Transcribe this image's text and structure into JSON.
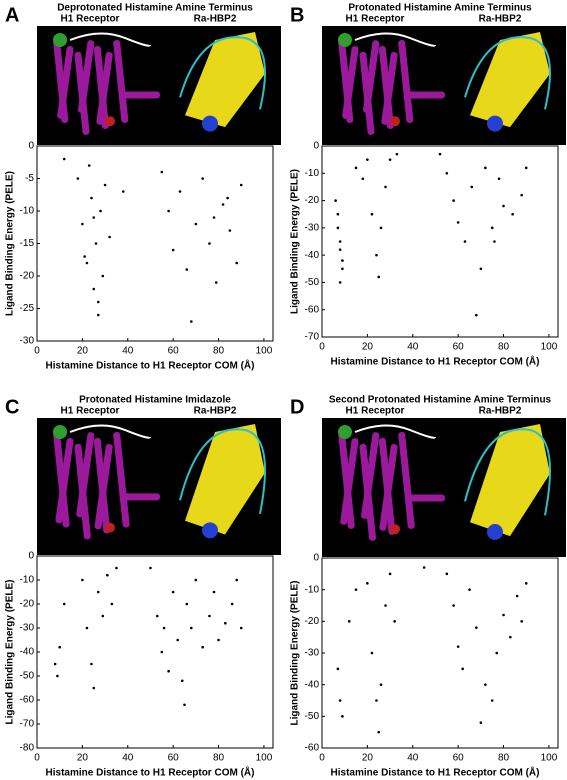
{
  "chart_data": [
    {
      "type": "scatter",
      "label": "A",
      "title": "Deprotonated Histamine Amine Terminus",
      "image_labels": [
        "H1 Receptor",
        "Ra-HBP2"
      ],
      "x_label": "Histamine Distance to H1 Receptor COM (Å)",
      "y_label": "Ligand Binding Energy (PELE)",
      "xlim": [
        0,
        104
      ],
      "ylim": [
        0,
        -30
      ],
      "xticks": [
        0,
        20,
        40,
        60,
        80,
        100
      ],
      "yticks": [
        0,
        -5,
        -10,
        -15,
        -20,
        -25,
        -30
      ],
      "color": "#000000",
      "x": [
        18,
        20,
        22,
        24,
        25,
        26,
        27,
        28,
        29,
        30,
        32,
        23,
        25,
        27,
        21,
        55,
        58,
        60,
        63,
        66,
        70,
        73,
        76,
        79,
        82,
        85,
        88,
        90,
        68,
        78,
        84,
        12,
        38
      ],
      "y": [
        -5,
        -12,
        -18,
        -8,
        -22,
        -15,
        -26,
        -10,
        -20,
        -6,
        -14,
        -3,
        -11,
        -24,
        -17,
        -4,
        -10,
        -16,
        -7,
        -19,
        -12,
        -5,
        -15,
        -21,
        -9,
        -13,
        -18,
        -6,
        -27,
        -11,
        -8,
        -2,
        -7
      ]
    },
    {
      "type": "scatter",
      "label": "B",
      "title": "Protonated Histamine Amine Terminus",
      "image_labels": [
        "H1 Receptor",
        "Ra-HBP2"
      ],
      "x_label": "Histamine Distance to H1 Receptor COM (Å)",
      "y_label": "Ligand Binding Energy (PELE)",
      "xlim": [
        0,
        104
      ],
      "ylim": [
        0,
        -70
      ],
      "xticks": [
        0,
        20,
        40,
        60,
        80,
        100
      ],
      "yticks": [
        0,
        -10,
        -20,
        -30,
        -40,
        -50,
        -60,
        -70
      ],
      "color": "#000000",
      "x": [
        6,
        7,
        8,
        9,
        8,
        7,
        9,
        8,
        15,
        20,
        22,
        24,
        25,
        26,
        28,
        30,
        18,
        52,
        55,
        58,
        60,
        63,
        66,
        70,
        72,
        75,
        76,
        78,
        80,
        84,
        88,
        90,
        68,
        33
      ],
      "y": [
        -20,
        -30,
        -38,
        -45,
        -50,
        -25,
        -42,
        -35,
        -8,
        -5,
        -25,
        -40,
        -48,
        -30,
        -15,
        -5,
        -12,
        -3,
        -10,
        -20,
        -28,
        -35,
        -15,
        -45,
        -8,
        -30,
        -35,
        -12,
        -22,
        -25,
        -18,
        -8,
        -62,
        -3
      ]
    },
    {
      "type": "scatter",
      "label": "C",
      "title": "Protonated Histamine Imidazole",
      "image_labels": [
        "H1 Receptor",
        "Ra-HBP2"
      ],
      "x_label": "Histamine Distance to H1 Receptor COM (Å)",
      "y_label": "Ligand Binding Energy (PELE)",
      "xlim": [
        0,
        104
      ],
      "ylim": [
        0,
        -80
      ],
      "xticks": [
        0,
        20,
        40,
        60,
        80,
        100
      ],
      "yticks": [
        0,
        -10,
        -20,
        -30,
        -40,
        -50,
        -60,
        -70,
        -80
      ],
      "color": "#000000",
      "x": [
        8,
        9,
        10,
        12,
        22,
        24,
        25,
        27,
        29,
        31,
        33,
        35,
        20,
        50,
        53,
        55,
        58,
        60,
        62,
        64,
        66,
        68,
        70,
        73,
        76,
        78,
        80,
        83,
        86,
        88,
        90,
        65,
        56
      ],
      "y": [
        -45,
        -50,
        -38,
        -20,
        -30,
        -45,
        -55,
        -15,
        -25,
        -8,
        -20,
        -5,
        -10,
        -5,
        -25,
        -40,
        -48,
        -15,
        -35,
        -52,
        -20,
        -30,
        -10,
        -38,
        -25,
        -15,
        -35,
        -28,
        -20,
        -10,
        -30,
        -62,
        -30
      ]
    },
    {
      "type": "scatter",
      "label": "D",
      "title": "Second Protonated Histamine Amine Terminus",
      "image_labels": [
        "H1 Receptor",
        "Ra-HBP2"
      ],
      "x_label": "Histamine Distance to H1 Receptor COM (Å)",
      "y_label": "Ligand Binding Energy (PELE)",
      "xlim": [
        0,
        104
      ],
      "ylim": [
        0,
        -60
      ],
      "xticks": [
        0,
        20,
        40,
        60,
        80,
        100
      ],
      "yticks": [
        0,
        -10,
        -20,
        -30,
        -40,
        -50,
        -60
      ],
      "color": "#000000",
      "x": [
        7,
        8,
        9,
        12,
        15,
        20,
        22,
        24,
        25,
        26,
        28,
        30,
        32,
        55,
        58,
        60,
        62,
        65,
        68,
        72,
        75,
        77,
        80,
        83,
        86,
        88,
        90,
        70,
        45
      ],
      "y": [
        -35,
        -45,
        -50,
        -20,
        -10,
        -8,
        -30,
        -45,
        -55,
        -40,
        -15,
        -5,
        -20,
        -5,
        -15,
        -28,
        -35,
        -10,
        -22,
        -40,
        -45,
        -30,
        -18,
        -25,
        -12,
        -20,
        -8,
        -52,
        -3
      ]
    }
  ]
}
